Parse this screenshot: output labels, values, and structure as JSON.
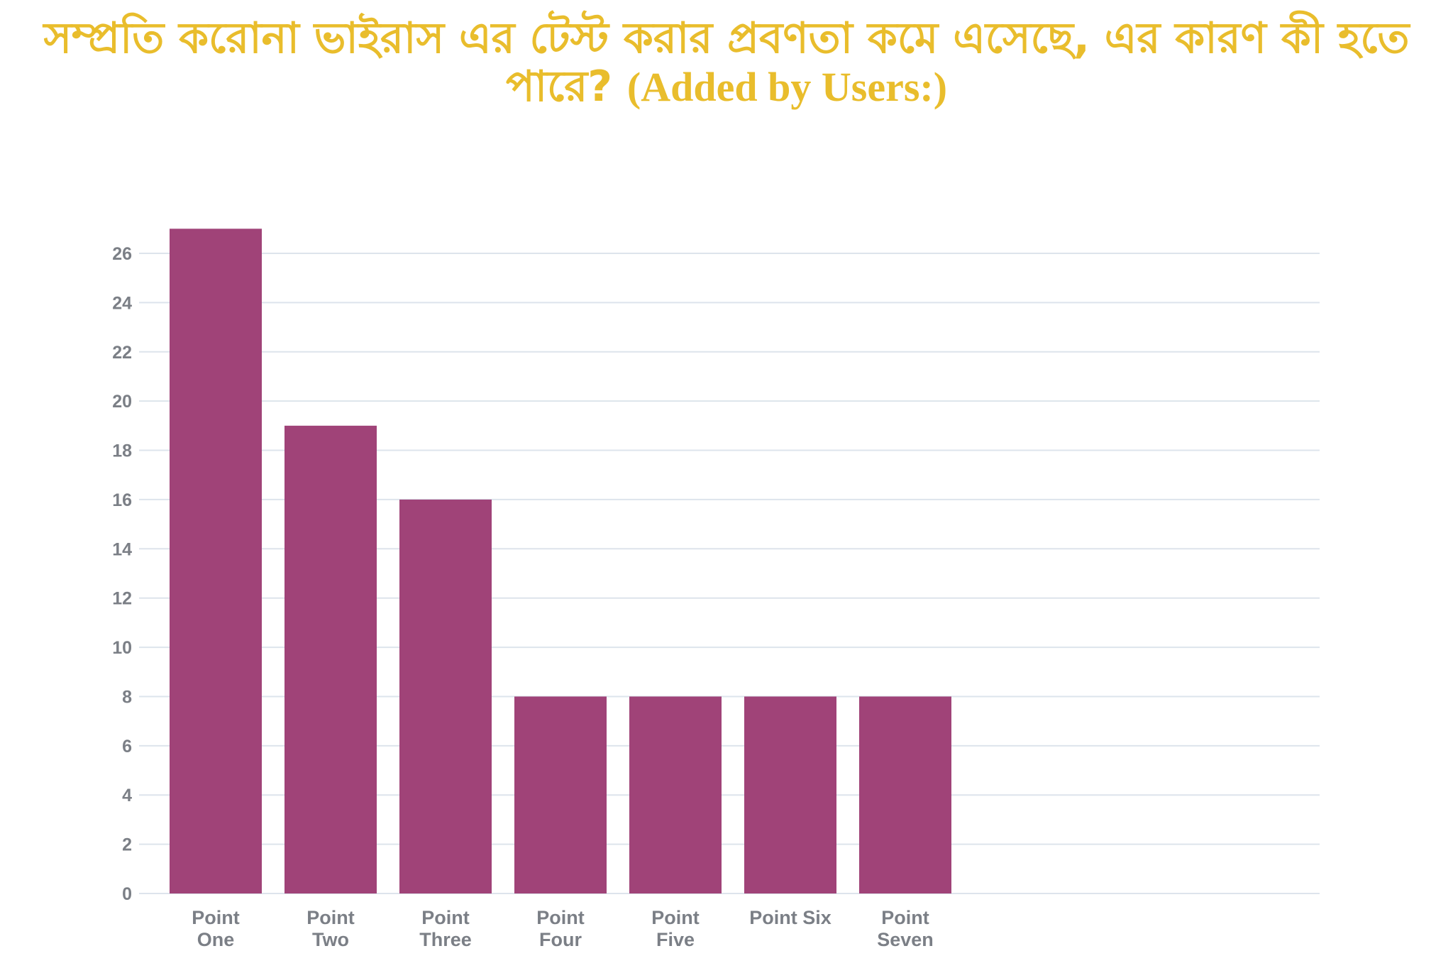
{
  "chart_data": {
    "type": "bar",
    "title": "সম্প্রতি করোনা ভাইরাস এর টেস্ট  করার প্রবণতা কমে এসেছে,  এর কারণ কী হতে পারে?",
    "title_suffix": "(Added by Users:)",
    "categories": [
      [
        "Point",
        "One"
      ],
      [
        "Point",
        "Two"
      ],
      [
        "Point",
        "Three"
      ],
      [
        "Point",
        "Four"
      ],
      [
        "Point",
        "Five"
      ],
      [
        "Point Six"
      ],
      [
        "Point",
        "Seven"
      ]
    ],
    "values": [
      27,
      19,
      16,
      8,
      8,
      8,
      8
    ],
    "ylim": [
      0,
      26
    ],
    "yticks": [
      0,
      2,
      4,
      6,
      8,
      10,
      12,
      14,
      16,
      18,
      20,
      22,
      24,
      26
    ],
    "grid": true,
    "legend": "none",
    "colors": {
      "bar": "#a04378",
      "grid": "#dde4ec",
      "title": "#e9bd2c",
      "tick_text": "#7b7f86"
    }
  }
}
